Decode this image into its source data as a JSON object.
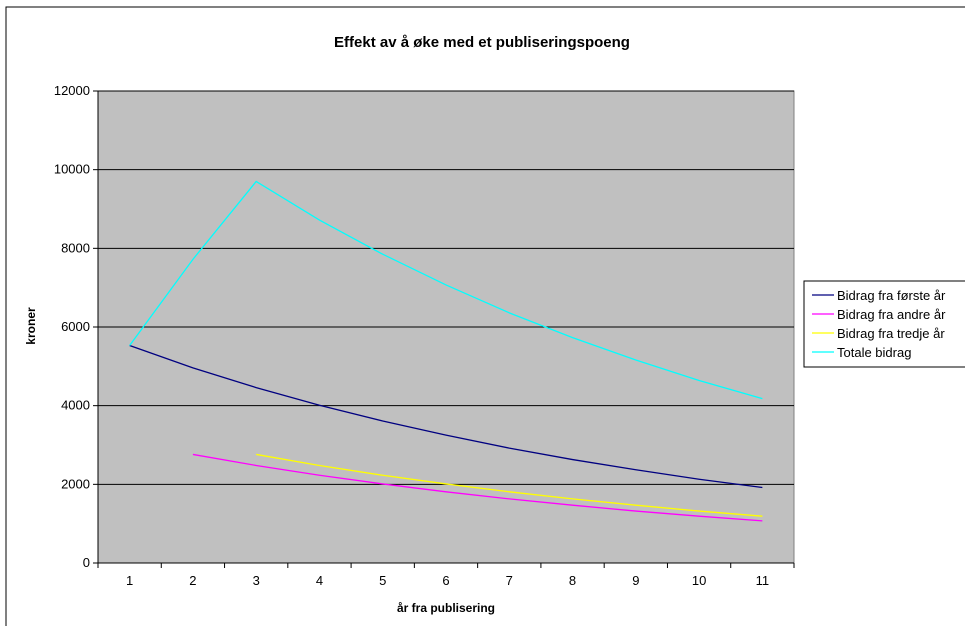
{
  "chart_data": {
    "type": "line",
    "title": "Effekt av å øke med et publiseringspoeng",
    "xlabel": "år fra publisering",
    "ylabel": "kroner",
    "categories": [
      "1",
      "2",
      "3",
      "4",
      "5",
      "6",
      "7",
      "8",
      "9",
      "10",
      "11"
    ],
    "ylim": [
      0,
      12000
    ],
    "yticks": [
      0,
      2000,
      4000,
      6000,
      8000,
      10000,
      12000
    ],
    "grid": true,
    "legend_position": "right",
    "plot_background": "#c0c0c0",
    "series": [
      {
        "name": "Bidrag fra første år",
        "color": "#000080",
        "values": [
          5530,
          4960,
          4460,
          4010,
          3610,
          3250,
          2920,
          2630,
          2370,
          2130,
          1920
        ]
      },
      {
        "name": "Bidrag fra andre år",
        "color": "#ff00ff",
        "values": [
          null,
          2760,
          2480,
          2230,
          2010,
          1810,
          1630,
          1470,
          1320,
          1190,
          1070
        ]
      },
      {
        "name": "Bidrag fra tredje år",
        "color": "#ffff00",
        "values": [
          null,
          null,
          2760,
          2480,
          2230,
          2010,
          1810,
          1630,
          1470,
          1320,
          1190
        ]
      },
      {
        "name": "Totale bidrag",
        "color": "#00ffff",
        "values": [
          5530,
          7720,
          9700,
          8720,
          7850,
          7070,
          6360,
          5730,
          5160,
          4640,
          4180
        ]
      }
    ]
  }
}
